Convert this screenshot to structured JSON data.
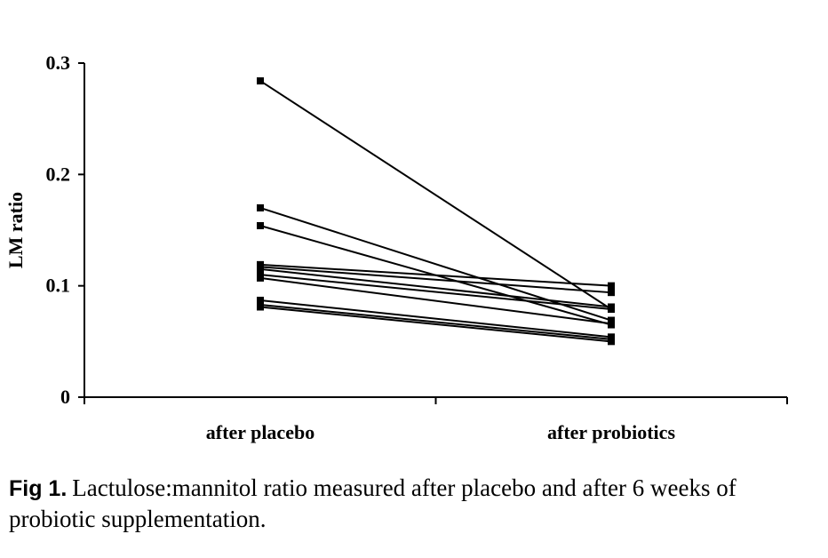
{
  "chart_data": {
    "type": "line",
    "categories": [
      "after placebo",
      "after probiotics"
    ],
    "ylabel": "LM ratio",
    "xlabel": "",
    "ylim": [
      0,
      0.3
    ],
    "yticks": [
      "0",
      "0.1",
      "0.2",
      "0.3"
    ],
    "grid": false,
    "legend": "none",
    "series": [
      {
        "values": [
          0.284,
          0.079
        ]
      },
      {
        "values": [
          0.17,
          0.069
        ]
      },
      {
        "values": [
          0.154,
          0.065
        ]
      },
      {
        "values": [
          0.119,
          0.1
        ]
      },
      {
        "values": [
          0.117,
          0.094
        ]
      },
      {
        "values": [
          0.115,
          0.081
        ]
      },
      {
        "values": [
          0.11,
          0.079
        ]
      },
      {
        "values": [
          0.107,
          0.066
        ]
      },
      {
        "values": [
          0.087,
          0.054
        ]
      },
      {
        "values": [
          0.083,
          0.052
        ]
      },
      {
        "values": [
          0.081,
          0.05
        ]
      }
    ]
  },
  "caption": {
    "label": "Fig 1.",
    "text": "Lactulose:mannitol ratio measured after placebo and after 6 weeks of probiotic supplementation."
  }
}
